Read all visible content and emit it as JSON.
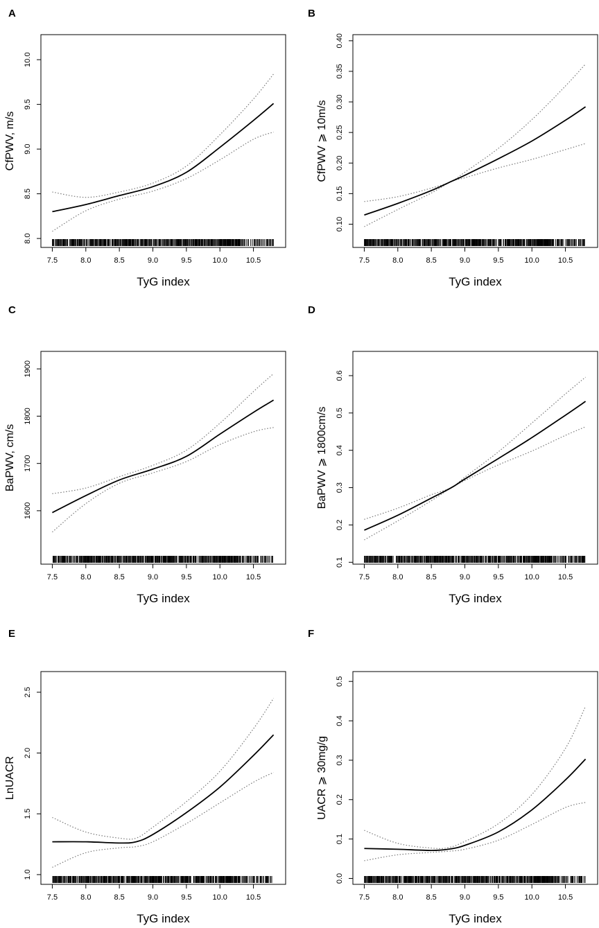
{
  "chart_data": [
    {
      "panel": "A",
      "type": "line",
      "xlabel": "TyG index",
      "ylabel": "CfPWV, m/s",
      "xlim": [
        7.33,
        10.98
      ],
      "ylim": [
        7.9,
        10.28
      ],
      "xticks": [
        "7.5",
        "8.0",
        "8.5",
        "9.0",
        "9.5",
        "10.0",
        "10.5"
      ],
      "yticks": [
        "8.0",
        "8.5",
        "9.0",
        "9.5",
        "10.0"
      ],
      "x": [
        7.5,
        8.0,
        8.5,
        9.0,
        9.5,
        10.0,
        10.5,
        10.8
      ],
      "fit": [
        8.3,
        8.38,
        8.48,
        8.58,
        8.74,
        9.02,
        9.32,
        9.51
      ],
      "lower": [
        8.08,
        8.31,
        8.44,
        8.53,
        8.67,
        8.88,
        9.11,
        9.19
      ],
      "upper": [
        8.52,
        8.46,
        8.52,
        8.62,
        8.81,
        9.16,
        9.56,
        9.84
      ],
      "rug": true
    },
    {
      "panel": "B",
      "type": "line",
      "xlabel": "TyG index",
      "ylabel": "CfPWV ⩾ 10m/s",
      "xlim": [
        7.33,
        10.98
      ],
      "ylim": [
        0.062,
        0.41
      ],
      "xticks": [
        "7.5",
        "8.0",
        "8.5",
        "9.0",
        "9.5",
        "10.0",
        "10.5"
      ],
      "yticks": [
        "0.10",
        "0.15",
        "0.20",
        "0.25",
        "0.30",
        "0.35",
        "0.40"
      ],
      "x": [
        7.5,
        8.0,
        8.5,
        8.8,
        9.0,
        9.5,
        10.0,
        10.5,
        10.8
      ],
      "fit": [
        0.115,
        0.134,
        0.155,
        0.17,
        0.18,
        0.207,
        0.236,
        0.27,
        0.292
      ],
      "lower": [
        0.096,
        0.124,
        0.151,
        0.17,
        0.176,
        0.192,
        0.206,
        0.222,
        0.232
      ],
      "upper": [
        0.137,
        0.145,
        0.159,
        0.17,
        0.185,
        0.224,
        0.271,
        0.326,
        0.362
      ],
      "rug": true
    },
    {
      "panel": "C",
      "type": "line",
      "xlabel": "TyG index",
      "ylabel": "BaPWV, cm/s",
      "xlim": [
        7.33,
        10.98
      ],
      "ylim": [
        1487,
        1937
      ],
      "xticks": [
        "7.5",
        "8.0",
        "8.5",
        "9.0",
        "9.5",
        "10.0",
        "10.5"
      ],
      "yticks": [
        "1600",
        "1700",
        "1800",
        "1900"
      ],
      "x": [
        7.5,
        8.0,
        8.5,
        9.0,
        9.5,
        10.0,
        10.5,
        10.8
      ],
      "fit": [
        1596,
        1632,
        1665,
        1688,
        1715,
        1762,
        1808,
        1834
      ],
      "lower": [
        1555,
        1615,
        1658,
        1680,
        1704,
        1740,
        1767,
        1776
      ],
      "upper": [
        1636,
        1648,
        1672,
        1696,
        1728,
        1785,
        1852,
        1890
      ],
      "rug": true
    },
    {
      "panel": "D",
      "type": "line",
      "xlabel": "TyG index",
      "ylabel": "BaPWV ⩾ 1800cm/s",
      "xlim": [
        7.33,
        10.98
      ],
      "ylim": [
        0.095,
        0.665
      ],
      "xticks": [
        "7.5",
        "8.0",
        "8.5",
        "9.0",
        "9.5",
        "10.0",
        "10.5"
      ],
      "yticks": [
        "0.1",
        "0.2",
        "0.3",
        "0.4",
        "0.5",
        "0.6"
      ],
      "x": [
        7.5,
        8.0,
        8.5,
        8.8,
        9.0,
        9.5,
        10.0,
        10.5,
        10.8
      ],
      "fit": [
        0.186,
        0.226,
        0.272,
        0.3,
        0.323,
        0.378,
        0.434,
        0.494,
        0.531
      ],
      "lower": [
        0.16,
        0.211,
        0.265,
        0.3,
        0.319,
        0.361,
        0.398,
        0.44,
        0.463
      ],
      "upper": [
        0.215,
        0.245,
        0.281,
        0.3,
        0.328,
        0.396,
        0.473,
        0.551,
        0.596
      ],
      "rug": true
    },
    {
      "panel": "E",
      "type": "line",
      "xlabel": "TyG index",
      "ylabel": "LnUACR",
      "xlim": [
        7.33,
        10.98
      ],
      "ylim": [
        0.92,
        2.67
      ],
      "xticks": [
        "7.5",
        "8.0",
        "8.5",
        "9.0",
        "9.5",
        "10.0",
        "10.5"
      ],
      "yticks": [
        "1.0",
        "1.5",
        "2.0",
        "2.5"
      ],
      "x": [
        7.5,
        8.0,
        8.5,
        8.75,
        9.0,
        9.5,
        10.0,
        10.5,
        10.8
      ],
      "fit": [
        1.27,
        1.27,
        1.26,
        1.27,
        1.33,
        1.51,
        1.72,
        1.98,
        2.15
      ],
      "lower": [
        1.06,
        1.18,
        1.22,
        1.23,
        1.27,
        1.42,
        1.59,
        1.76,
        1.84
      ],
      "upper": [
        1.47,
        1.35,
        1.3,
        1.3,
        1.39,
        1.6,
        1.85,
        2.2,
        2.45
      ],
      "rug": true
    },
    {
      "panel": "F",
      "type": "line",
      "xlabel": "TyG index",
      "ylabel": "UACR ⩾ 30mg/g",
      "xlim": [
        7.33,
        10.98
      ],
      "ylim": [
        -0.015,
        0.525
      ],
      "xticks": [
        "7.5",
        "8.0",
        "8.5",
        "9.0",
        "9.5",
        "10.0",
        "10.5"
      ],
      "yticks": [
        "0.0",
        "0.1",
        "0.2",
        "0.3",
        "0.4",
        "0.5"
      ],
      "x": [
        7.5,
        8.0,
        8.5,
        8.75,
        9.0,
        9.5,
        10.0,
        10.5,
        10.8
      ],
      "fit": [
        0.076,
        0.074,
        0.071,
        0.074,
        0.084,
        0.118,
        0.174,
        0.25,
        0.303
      ],
      "lower": [
        0.045,
        0.06,
        0.066,
        0.069,
        0.074,
        0.097,
        0.137,
        0.18,
        0.193
      ],
      "upper": [
        0.122,
        0.089,
        0.077,
        0.078,
        0.094,
        0.139,
        0.213,
        0.33,
        0.437
      ],
      "rug": true
    }
  ]
}
